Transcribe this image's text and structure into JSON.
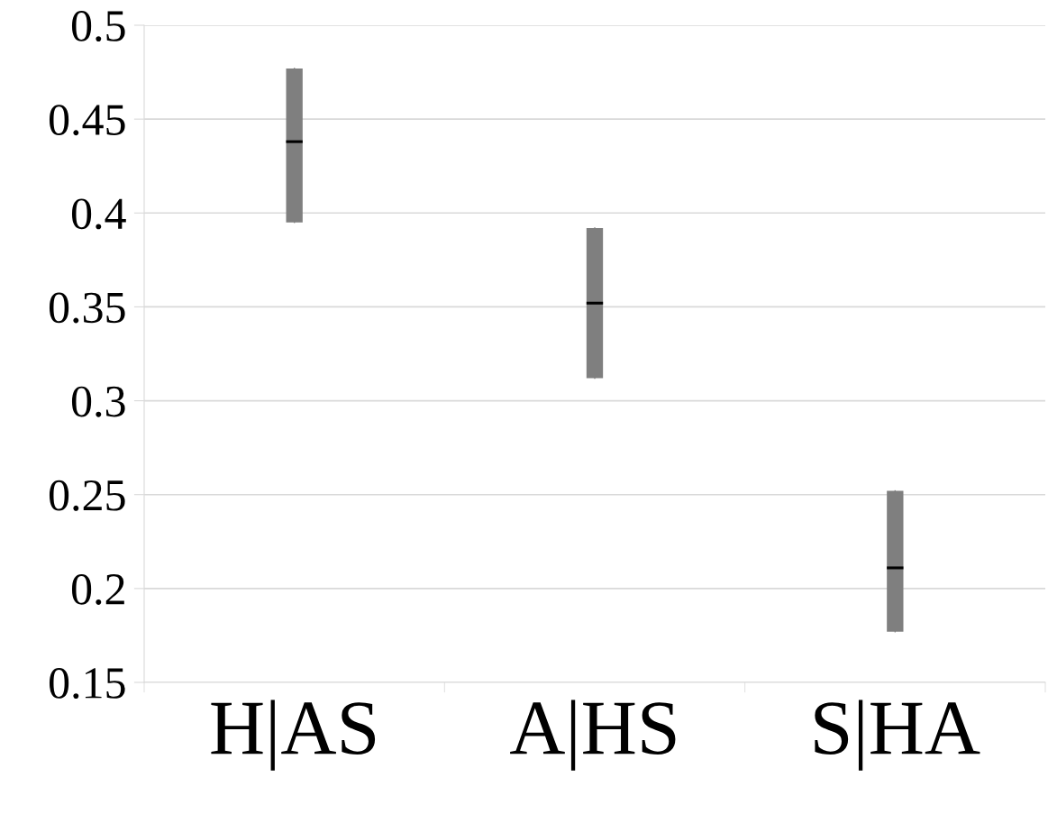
{
  "chart_data": {
    "type": "box",
    "categories": [
      "H|AS",
      "A|HS",
      "S|HA"
    ],
    "boxes": [
      {
        "low": 0.395,
        "q1": 0.395,
        "median": 0.438,
        "q3": 0.477,
        "high": 0.477
      },
      {
        "low": 0.312,
        "q1": 0.312,
        "median": 0.352,
        "q3": 0.392,
        "high": 0.392
      },
      {
        "low": 0.177,
        "q1": 0.177,
        "median": 0.211,
        "q3": 0.252,
        "high": 0.252
      }
    ],
    "color": "#7f7f7f",
    "ylim": [
      0.15,
      0.5
    ],
    "yticks": [
      0.15,
      0.2,
      0.25,
      0.3,
      0.35,
      0.4,
      0.45,
      0.5
    ],
    "grid": "y"
  }
}
